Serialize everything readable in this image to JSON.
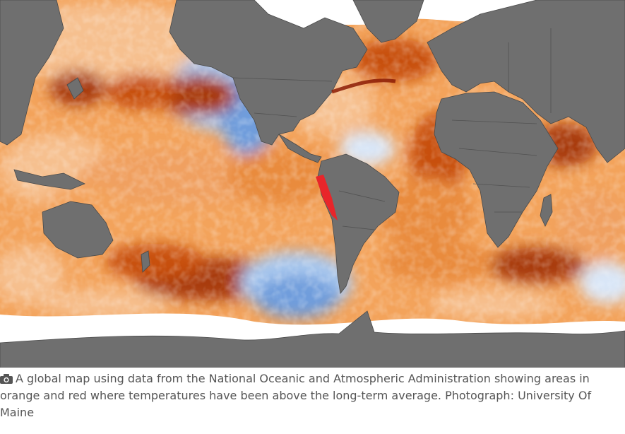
{
  "figure": {
    "caption": "A global map using data from the National Oceanic and Atmospheric Administration showing areas in orange and red where temperatures have been above the long-term average.",
    "credit_label": "Photograph:",
    "credit": "University Of Maine",
    "icon": "camera-icon"
  },
  "map": {
    "type": "sea-surface-temperature-anomaly",
    "colors": {
      "ocean_warm": "#f3a35b",
      "ocean_hot": "#c8500f",
      "ocean_extreme": "#8c1c05",
      "ocean_cool": "#a9c8ee",
      "ocean_cold": "#4f86d3",
      "land": "#6f6f6f",
      "ice": "#ffffff",
      "peru_hotspot": "#e8252a"
    }
  }
}
